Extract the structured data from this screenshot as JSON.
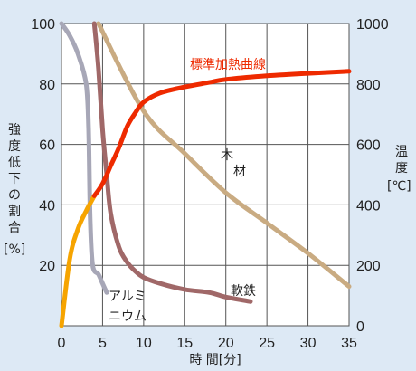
{
  "chart_data": {
    "type": "line",
    "x_ticks": [
      "0",
      "5",
      "10",
      "15",
      "20",
      "25",
      "30",
      "35"
    ],
    "y_left_ticks": [
      "100",
      "80",
      "60",
      "40",
      "20"
    ],
    "y_right_ticks": [
      "1000",
      "800",
      "600",
      "400",
      "200",
      "0"
    ],
    "xlabel": "時 間[分]",
    "ylabel_left": [
      "強",
      "度",
      "低",
      "下",
      "の",
      "割",
      "合",
      "[%]"
    ],
    "ylabel_right": [
      "温",
      "度",
      "[℃]"
    ],
    "xlim": [
      0,
      35
    ],
    "ylim_left": [
      0,
      100
    ],
    "ylim_right": [
      0,
      1000
    ],
    "grid": true,
    "series": [
      {
        "name": "標準加熱曲線",
        "axis": "right",
        "color": "#ee2a00",
        "x": [
          0,
          1,
          2,
          3,
          4,
          5,
          6,
          7,
          8,
          9,
          10,
          12,
          15,
          18,
          20,
          25,
          30,
          35
        ],
        "y": [
          0,
          220,
          320,
          380,
          430,
          470,
          530,
          590,
          660,
          705,
          740,
          770,
          790,
          805,
          815,
          827,
          835,
          842
        ]
      },
      {
        "name": "木材",
        "axis": "left",
        "color": "#c9ab82",
        "x": [
          4.5,
          10,
          15,
          20,
          25,
          30,
          35
        ],
        "y": [
          100,
          71,
          57,
          44,
          34,
          24,
          13
        ]
      },
      {
        "name": "軟鉄",
        "axis": "left",
        "color": "#a06868",
        "x": [
          4,
          4.5,
          5,
          5.5,
          6,
          7,
          8,
          9,
          10,
          12,
          15,
          18,
          20,
          23
        ],
        "y": [
          100,
          85,
          65,
          50,
          37,
          26,
          21,
          18,
          16,
          14,
          12,
          11,
          9.5,
          8
        ]
      },
      {
        "name": "アルミニウム",
        "axis": "left",
        "color": "#a7a7b7",
        "x": [
          0,
          1,
          2,
          3,
          3.3,
          3.5,
          3.8,
          4.5,
          5,
          5.5
        ],
        "y": [
          100,
          96,
          90,
          80,
          65,
          35,
          20,
          17,
          14,
          11
        ]
      }
    ]
  }
}
